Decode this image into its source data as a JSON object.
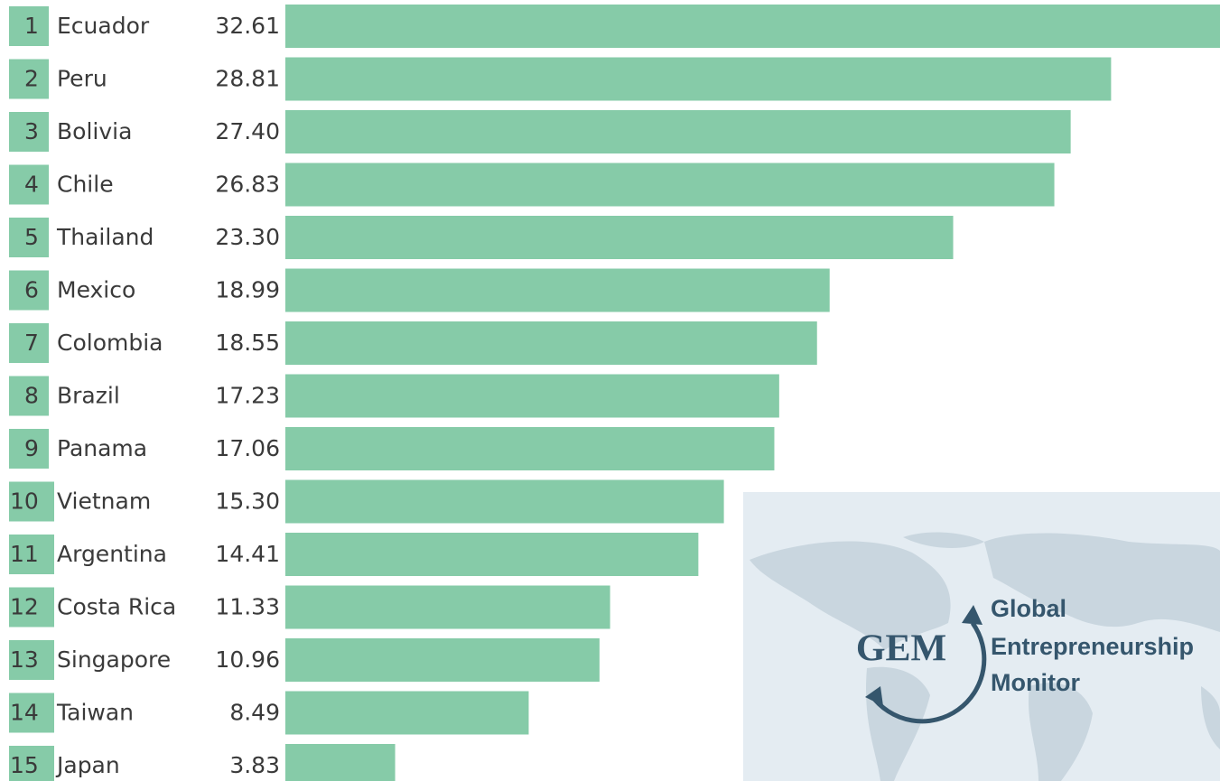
{
  "chart_data": {
    "type": "bar",
    "orientation": "horizontal",
    "color": "#86cba8",
    "ranks": [
      "1",
      "2",
      "3",
      "4",
      "5",
      "6",
      "7",
      "8",
      "9",
      "10",
      "11",
      "12",
      "13",
      "14",
      "15"
    ],
    "categories": [
      "Ecuador",
      "Peru",
      "Bolivia",
      "Chile",
      "Thailand",
      "Mexico",
      "Colombia",
      "Brazil",
      "Panama",
      "Vietnam",
      "Argentina",
      "Costa Rica",
      "Singapore",
      "Taiwan",
      "Japan"
    ],
    "values": [
      32.61,
      28.81,
      27.4,
      26.83,
      23.3,
      18.99,
      18.55,
      17.23,
      17.06,
      15.3,
      14.41,
      11.33,
      10.96,
      8.49,
      3.83
    ],
    "value_labels": [
      "32.61",
      "28.81",
      "27.40",
      "26.83",
      "23.30",
      "18.99",
      "18.55",
      "17.23",
      "17.06",
      "15.30",
      "14.41",
      "11.33",
      "10.96",
      "8.49",
      "3.83"
    ]
  },
  "logo": {
    "abbreviation": "GEM",
    "lines": [
      "Global",
      "Entrepreneurship",
      "Monitor"
    ]
  }
}
